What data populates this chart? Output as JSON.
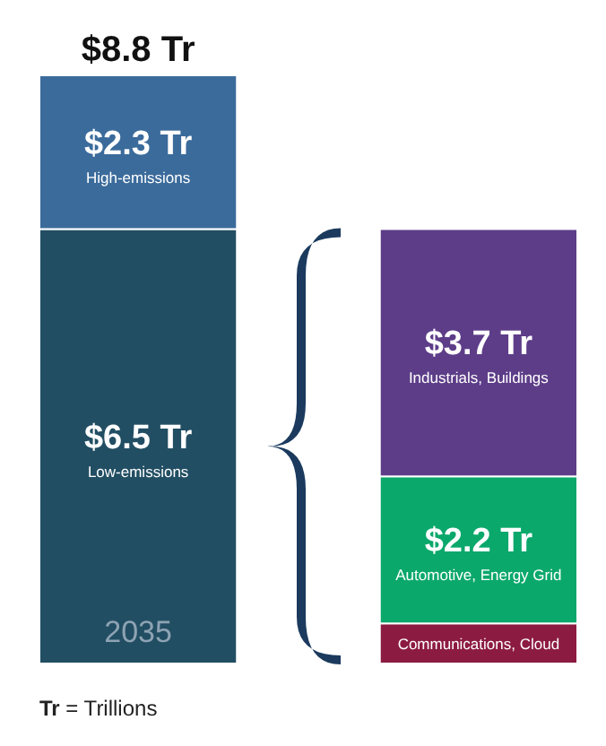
{
  "chart_data": {
    "type": "bar",
    "stacked": true,
    "categories": [
      "2035",
      null
    ],
    "series": [
      {
        "name": "Low-emissions",
        "color": "#224e63",
        "values": [
          6.5,
          null
        ],
        "value_labels": [
          "$6.5 Tr",
          null
        ]
      },
      {
        "name": "High-emissions",
        "color": "#3b6b9b",
        "values": [
          2.3,
          null
        ],
        "value_labels": [
          "$2.3 Tr",
          null
        ]
      },
      {
        "name": "Communications, Cloud",
        "color": "#8c1b42",
        "values": [
          null,
          0.6
        ],
        "value_labels": [
          null,
          null
        ]
      },
      {
        "name": "Automotive, Energy Grid",
        "color": "#0ba86b",
        "values": [
          null,
          2.2
        ],
        "value_labels": [
          null,
          "$2.2 Tr"
        ]
      },
      {
        "name": "Industrials, Buildings",
        "color": "#5d3d88",
        "values": [
          null,
          3.7
        ],
        "value_labels": [
          null,
          "$3.7 Tr"
        ]
      }
    ],
    "totals": [
      "$8.8 Tr",
      null
    ],
    "annotations": [
      "Tr = Trillions"
    ]
  }
}
